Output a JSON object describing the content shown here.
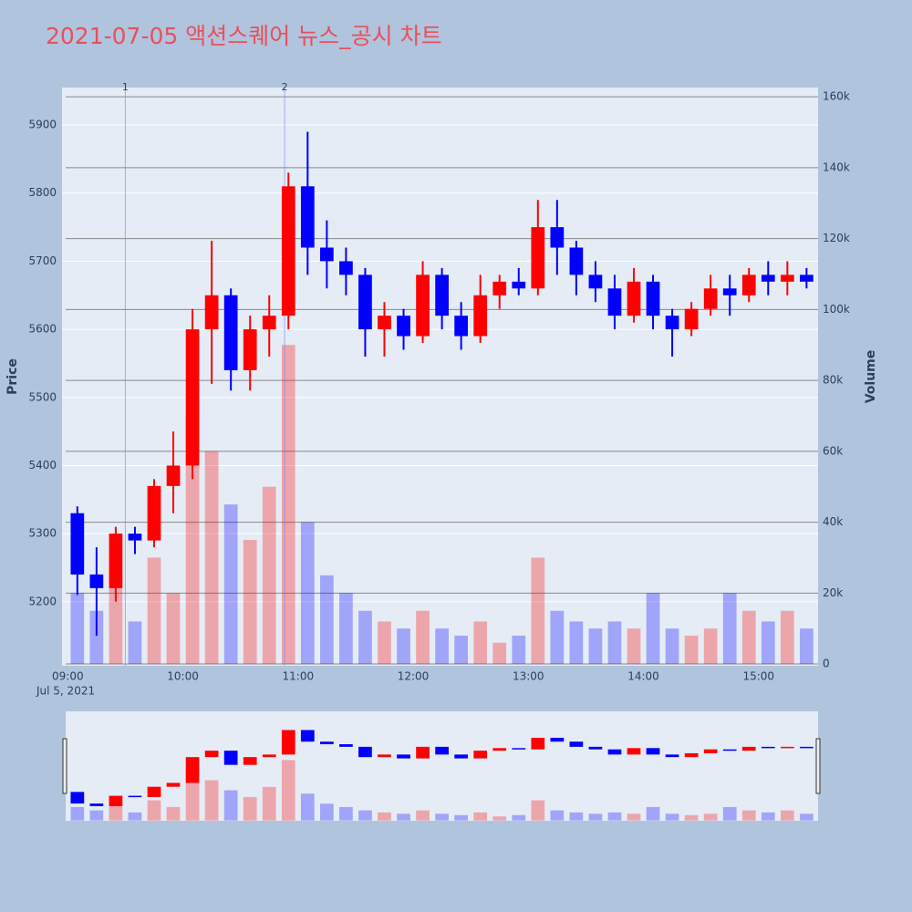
{
  "chart_data": {
    "type": "candlestick",
    "title": "2021-07-05 액션스퀘어 뉴스_공시 차트",
    "yaxis_title": "Price",
    "y2axis_title": "Volume",
    "date_label": "Jul 5, 2021",
    "up_color": "#ff0000",
    "down_color": "#0000ff",
    "x": [
      "09:00",
      "09:10",
      "09:20",
      "09:30",
      "09:40",
      "09:50",
      "10:00",
      "10:10",
      "10:20",
      "10:30",
      "10:40",
      "10:50",
      "11:00",
      "11:10",
      "11:20",
      "11:30",
      "11:40",
      "11:50",
      "12:00",
      "12:10",
      "12:20",
      "12:30",
      "12:40",
      "12:50",
      "13:00",
      "13:10",
      "13:20",
      "13:30",
      "13:40",
      "13:50",
      "14:00",
      "14:10",
      "14:20",
      "14:30",
      "14:40",
      "14:50",
      "15:00",
      "15:10",
      "15:20"
    ],
    "open": [
      5330,
      5240,
      5220,
      5300,
      5290,
      5370,
      5400,
      5600,
      5650,
      5540,
      5600,
      5620,
      5810,
      5720,
      5700,
      5680,
      5600,
      5620,
      5590,
      5680,
      5620,
      5590,
      5650,
      5670,
      5660,
      5750,
      5720,
      5680,
      5660,
      5620,
      5670,
      5620,
      5600,
      5630,
      5660,
      5650,
      5680,
      5670,
      5680
    ],
    "high": [
      5340,
      5280,
      5310,
      5310,
      5380,
      5450,
      5630,
      5730,
      5660,
      5620,
      5650,
      5830,
      5890,
      5760,
      5720,
      5690,
      5640,
      5630,
      5700,
      5690,
      5640,
      5680,
      5680,
      5690,
      5790,
      5790,
      5730,
      5700,
      5680,
      5690,
      5680,
      5630,
      5640,
      5680,
      5680,
      5690,
      5700,
      5700,
      5690
    ],
    "low": [
      5210,
      5150,
      5200,
      5270,
      5280,
      5330,
      5380,
      5520,
      5510,
      5510,
      5560,
      5600,
      5680,
      5660,
      5650,
      5560,
      5560,
      5570,
      5580,
      5600,
      5570,
      5580,
      5630,
      5650,
      5650,
      5680,
      5650,
      5640,
      5600,
      5610,
      5600,
      5560,
      5590,
      5620,
      5620,
      5640,
      5650,
      5650,
      5660
    ],
    "close": [
      5240,
      5220,
      5300,
      5290,
      5370,
      5400,
      5600,
      5650,
      5540,
      5600,
      5620,
      5810,
      5720,
      5700,
      5680,
      5600,
      5620,
      5590,
      5680,
      5620,
      5590,
      5650,
      5670,
      5660,
      5750,
      5720,
      5680,
      5660,
      5620,
      5670,
      5620,
      5600,
      5630,
      5660,
      5650,
      5680,
      5670,
      5680,
      5670
    ],
    "volume": [
      20000,
      15000,
      25000,
      12000,
      30000,
      20000,
      70000,
      60000,
      45000,
      35000,
      50000,
      90000,
      40000,
      25000,
      20000,
      15000,
      12000,
      10000,
      15000,
      10000,
      8000,
      12000,
      6000,
      8000,
      30000,
      15000,
      12000,
      10000,
      12000,
      10000,
      20000,
      10000,
      8000,
      10000,
      20000,
      15000,
      12000,
      15000,
      10000
    ],
    "xlim": [
      "08:57",
      "15:31"
    ],
    "xticks": [
      "09:00",
      "10:00",
      "11:00",
      "12:00",
      "13:00",
      "14:00",
      "15:00"
    ],
    "ylim": [
      5106,
      5955
    ],
    "yticks": [
      5200,
      5300,
      5400,
      5500,
      5600,
      5700,
      5800,
      5900
    ],
    "y2lim": [
      -500,
      162600
    ],
    "y2ticks": [
      0,
      {
        "value": 20000,
        "label": "20k"
      },
      {
        "value": 40000,
        "label": "40k"
      },
      {
        "value": 60000,
        "label": "60k"
      },
      {
        "value": 80000,
        "label": "80k"
      },
      {
        "value": 100000,
        "label": "100k"
      },
      {
        "value": 120000,
        "label": "120k"
      },
      {
        "value": 140000,
        "label": "140k"
      },
      {
        "value": 160000,
        "label": "160k"
      }
    ],
    "annotations": [
      {
        "x": "09:30",
        "text": "1"
      },
      {
        "x": "10:53",
        "text": "2"
      }
    ],
    "grid": true,
    "rangeslider": true
  }
}
